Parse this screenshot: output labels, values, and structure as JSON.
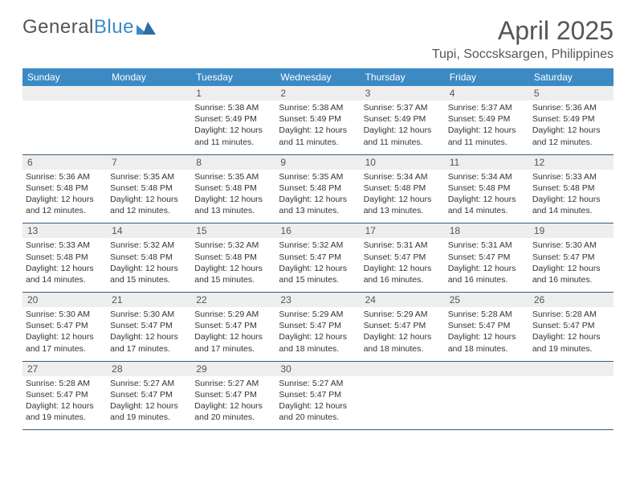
{
  "brand": {
    "text1": "General",
    "text2": "Blue"
  },
  "title": "April 2025",
  "location": "Tupi, Soccsksargen, Philippines",
  "colors": {
    "header_bg": "#3b8ac4",
    "header_fg": "#ffffff",
    "daynum_bg": "#eeeeee",
    "week_border": "#3b5a78",
    "text": "#333333",
    "muted": "#555555"
  },
  "day_names": [
    "Sunday",
    "Monday",
    "Tuesday",
    "Wednesday",
    "Thursday",
    "Friday",
    "Saturday"
  ],
  "weeks": [
    [
      null,
      null,
      {
        "n": "1",
        "sr": "Sunrise: 5:38 AM",
        "ss": "Sunset: 5:49 PM",
        "d1": "Daylight: 12 hours",
        "d2": "and 11 minutes."
      },
      {
        "n": "2",
        "sr": "Sunrise: 5:38 AM",
        "ss": "Sunset: 5:49 PM",
        "d1": "Daylight: 12 hours",
        "d2": "and 11 minutes."
      },
      {
        "n": "3",
        "sr": "Sunrise: 5:37 AM",
        "ss": "Sunset: 5:49 PM",
        "d1": "Daylight: 12 hours",
        "d2": "and 11 minutes."
      },
      {
        "n": "4",
        "sr": "Sunrise: 5:37 AM",
        "ss": "Sunset: 5:49 PM",
        "d1": "Daylight: 12 hours",
        "d2": "and 11 minutes."
      },
      {
        "n": "5",
        "sr": "Sunrise: 5:36 AM",
        "ss": "Sunset: 5:49 PM",
        "d1": "Daylight: 12 hours",
        "d2": "and 12 minutes."
      }
    ],
    [
      {
        "n": "6",
        "sr": "Sunrise: 5:36 AM",
        "ss": "Sunset: 5:48 PM",
        "d1": "Daylight: 12 hours",
        "d2": "and 12 minutes."
      },
      {
        "n": "7",
        "sr": "Sunrise: 5:35 AM",
        "ss": "Sunset: 5:48 PM",
        "d1": "Daylight: 12 hours",
        "d2": "and 12 minutes."
      },
      {
        "n": "8",
        "sr": "Sunrise: 5:35 AM",
        "ss": "Sunset: 5:48 PM",
        "d1": "Daylight: 12 hours",
        "d2": "and 13 minutes."
      },
      {
        "n": "9",
        "sr": "Sunrise: 5:35 AM",
        "ss": "Sunset: 5:48 PM",
        "d1": "Daylight: 12 hours",
        "d2": "and 13 minutes."
      },
      {
        "n": "10",
        "sr": "Sunrise: 5:34 AM",
        "ss": "Sunset: 5:48 PM",
        "d1": "Daylight: 12 hours",
        "d2": "and 13 minutes."
      },
      {
        "n": "11",
        "sr": "Sunrise: 5:34 AM",
        "ss": "Sunset: 5:48 PM",
        "d1": "Daylight: 12 hours",
        "d2": "and 14 minutes."
      },
      {
        "n": "12",
        "sr": "Sunrise: 5:33 AM",
        "ss": "Sunset: 5:48 PM",
        "d1": "Daylight: 12 hours",
        "d2": "and 14 minutes."
      }
    ],
    [
      {
        "n": "13",
        "sr": "Sunrise: 5:33 AM",
        "ss": "Sunset: 5:48 PM",
        "d1": "Daylight: 12 hours",
        "d2": "and 14 minutes."
      },
      {
        "n": "14",
        "sr": "Sunrise: 5:32 AM",
        "ss": "Sunset: 5:48 PM",
        "d1": "Daylight: 12 hours",
        "d2": "and 15 minutes."
      },
      {
        "n": "15",
        "sr": "Sunrise: 5:32 AM",
        "ss": "Sunset: 5:48 PM",
        "d1": "Daylight: 12 hours",
        "d2": "and 15 minutes."
      },
      {
        "n": "16",
        "sr": "Sunrise: 5:32 AM",
        "ss": "Sunset: 5:47 PM",
        "d1": "Daylight: 12 hours",
        "d2": "and 15 minutes."
      },
      {
        "n": "17",
        "sr": "Sunrise: 5:31 AM",
        "ss": "Sunset: 5:47 PM",
        "d1": "Daylight: 12 hours",
        "d2": "and 16 minutes."
      },
      {
        "n": "18",
        "sr": "Sunrise: 5:31 AM",
        "ss": "Sunset: 5:47 PM",
        "d1": "Daylight: 12 hours",
        "d2": "and 16 minutes."
      },
      {
        "n": "19",
        "sr": "Sunrise: 5:30 AM",
        "ss": "Sunset: 5:47 PM",
        "d1": "Daylight: 12 hours",
        "d2": "and 16 minutes."
      }
    ],
    [
      {
        "n": "20",
        "sr": "Sunrise: 5:30 AM",
        "ss": "Sunset: 5:47 PM",
        "d1": "Daylight: 12 hours",
        "d2": "and 17 minutes."
      },
      {
        "n": "21",
        "sr": "Sunrise: 5:30 AM",
        "ss": "Sunset: 5:47 PM",
        "d1": "Daylight: 12 hours",
        "d2": "and 17 minutes."
      },
      {
        "n": "22",
        "sr": "Sunrise: 5:29 AM",
        "ss": "Sunset: 5:47 PM",
        "d1": "Daylight: 12 hours",
        "d2": "and 17 minutes."
      },
      {
        "n": "23",
        "sr": "Sunrise: 5:29 AM",
        "ss": "Sunset: 5:47 PM",
        "d1": "Daylight: 12 hours",
        "d2": "and 18 minutes."
      },
      {
        "n": "24",
        "sr": "Sunrise: 5:29 AM",
        "ss": "Sunset: 5:47 PM",
        "d1": "Daylight: 12 hours",
        "d2": "and 18 minutes."
      },
      {
        "n": "25",
        "sr": "Sunrise: 5:28 AM",
        "ss": "Sunset: 5:47 PM",
        "d1": "Daylight: 12 hours",
        "d2": "and 18 minutes."
      },
      {
        "n": "26",
        "sr": "Sunrise: 5:28 AM",
        "ss": "Sunset: 5:47 PM",
        "d1": "Daylight: 12 hours",
        "d2": "and 19 minutes."
      }
    ],
    [
      {
        "n": "27",
        "sr": "Sunrise: 5:28 AM",
        "ss": "Sunset: 5:47 PM",
        "d1": "Daylight: 12 hours",
        "d2": "and 19 minutes."
      },
      {
        "n": "28",
        "sr": "Sunrise: 5:27 AM",
        "ss": "Sunset: 5:47 PM",
        "d1": "Daylight: 12 hours",
        "d2": "and 19 minutes."
      },
      {
        "n": "29",
        "sr": "Sunrise: 5:27 AM",
        "ss": "Sunset: 5:47 PM",
        "d1": "Daylight: 12 hours",
        "d2": "and 20 minutes."
      },
      {
        "n": "30",
        "sr": "Sunrise: 5:27 AM",
        "ss": "Sunset: 5:47 PM",
        "d1": "Daylight: 12 hours",
        "d2": "and 20 minutes."
      },
      null,
      null,
      null
    ]
  ]
}
